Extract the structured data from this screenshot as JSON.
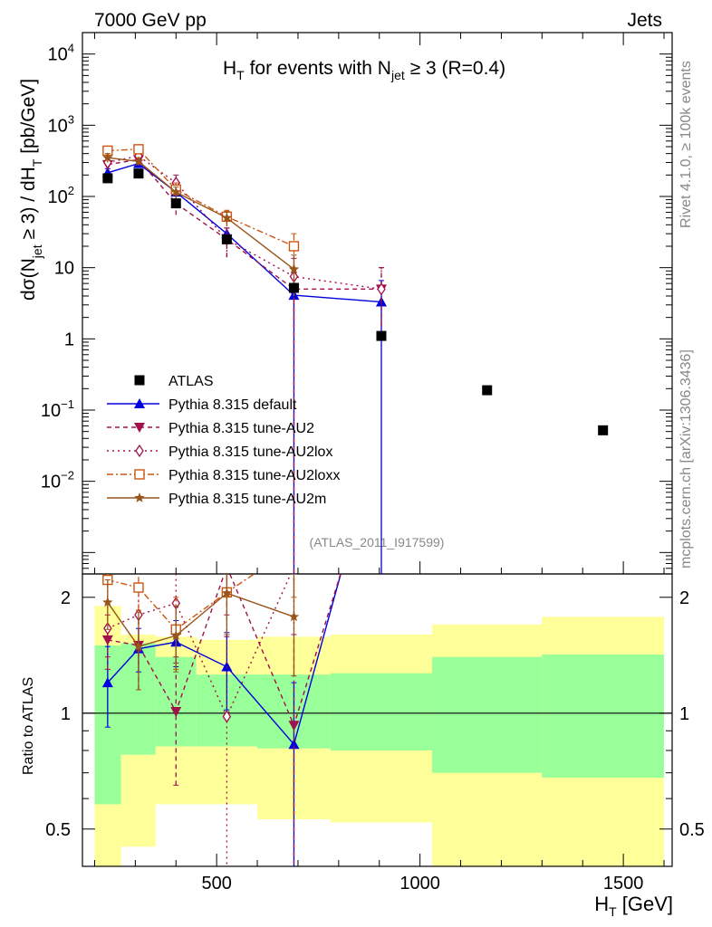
{
  "chart_data": {
    "type": "scatter",
    "header_left": "7000 GeV pp",
    "header_right": "Jets",
    "title": {
      "base": "H",
      "base_sub": "T",
      "mid": " for events with N",
      "mid_sub": "jet",
      "tail": " ≥ 3 (R=0.4)"
    },
    "ylabel": {
      "p1": "dσ(N",
      "sub1": "jet",
      "p2": " ≥ 3) / dH",
      "sub2": "T",
      "p3": " [pb/GeV]"
    },
    "xlabel": {
      "base": "H",
      "sub": "T",
      "tail": " [GeV]"
    },
    "ratio_ylabel": "Ratio to ATLAS",
    "right_label_top": "Rivet 4.1.0, ≥ 100k events",
    "right_label_bottom": "mcplots.cern.ch [arXiv:1306.3436]",
    "analysis_id": "(ATLAS_2011_I917599)",
    "xlim": [
      170,
      1620
    ],
    "ylim_main": [
      0.0005,
      20000
    ],
    "ylim_ratio": [
      0.4,
      2.3
    ],
    "x_ticks": [
      {
        "value": 500,
        "label": "500"
      },
      {
        "value": 1000,
        "label": "1000"
      },
      {
        "value": 1500,
        "label": "1500"
      }
    ],
    "y_ticks_main": [
      {
        "value": 10000,
        "base": "10",
        "exp": "4"
      },
      {
        "value": 1000,
        "base": "10",
        "exp": "3"
      },
      {
        "value": 100,
        "base": "10",
        "exp": "2"
      },
      {
        "value": 10,
        "base": "10",
        "exp": ""
      },
      {
        "value": 1,
        "base": "1",
        "exp": ""
      },
      {
        "value": 0.1,
        "base": "10",
        "exp": "−1"
      },
      {
        "value": 0.01,
        "base": "10",
        "exp": "−2"
      }
    ],
    "y_ticks_ratio": [
      {
        "value": 2,
        "label": "2"
      },
      {
        "value": 1,
        "label": "1"
      },
      {
        "value": 0.5,
        "label": "0.5"
      }
    ],
    "bins": [
      {
        "lo": 200,
        "hi": 265,
        "green": [
          0.58,
          1.5
        ],
        "yellow": [
          0.35,
          1.9
        ]
      },
      {
        "lo": 265,
        "hi": 350,
        "green": [
          0.78,
          1.52
        ],
        "yellow": [
          0.45,
          1.6
        ]
      },
      {
        "lo": 350,
        "hi": 450,
        "green": [
          0.82,
          1.4
        ],
        "yellow": [
          0.58,
          1.58
        ]
      },
      {
        "lo": 450,
        "hi": 600,
        "green": [
          0.82,
          1.26
        ],
        "yellow": [
          0.58,
          1.55
        ]
      },
      {
        "lo": 600,
        "hi": 780,
        "green": [
          0.81,
          1.26
        ],
        "yellow": [
          0.53,
          1.58
        ]
      },
      {
        "lo": 780,
        "hi": 1030,
        "green": [
          0.8,
          1.27
        ],
        "yellow": [
          0.52,
          1.6
        ]
      },
      {
        "lo": 1030,
        "hi": 1300,
        "green": [
          0.7,
          1.4
        ],
        "yellow": [
          0.34,
          1.7
        ]
      },
      {
        "lo": 1300,
        "hi": 1600,
        "green": [
          0.68,
          1.42
        ],
        "yellow": [
          0.34,
          1.78
        ]
      }
    ],
    "atlas": {
      "name": "ATLAS",
      "x": [
        232,
        308,
        400,
        525,
        690,
        905,
        1165,
        1450
      ],
      "y": [
        180,
        210,
        80,
        25,
        5.2,
        1.1,
        0.19,
        0.052
      ]
    },
    "series": [
      {
        "name": "Pythia 8.315 default",
        "color": "#0000dd",
        "dash": "",
        "marker": "triangle-up",
        "x": [
          232,
          308,
          400,
          525,
          690,
          905
        ],
        "y": [
          215,
          290,
          115,
          30,
          4.1,
          3.3
        ],
        "err": [
          [
            185,
            245
          ],
          [
            255,
            325
          ],
          [
            95,
            135
          ],
          [
            24,
            36
          ],
          [
            0.0004,
            8.5
          ],
          [
            0.0004,
            6.6
          ]
        ],
        "ratio_x": [
          232,
          308,
          400,
          525,
          690
        ],
        "ratio_y": [
          1.2,
          1.47,
          1.53,
          1.32,
          0.83
        ],
        "ratio_err": [
          [
            0.92,
            1.49
          ],
          [
            1.28,
            1.66
          ],
          [
            1.32,
            1.74
          ],
          [
            1.02,
            1.62
          ],
          [
            0.35,
            1.2
          ]
        ],
        "ratio_tail": 2.4
      },
      {
        "name": "Pythia 8.315 tune-AU2",
        "color": "#a0104c",
        "dash": "5,4",
        "marker": "triangle-down",
        "x": [
          232,
          308,
          400,
          525,
          690,
          905
        ],
        "y": [
          280,
          330,
          80,
          25,
          5.0,
          5.0
        ],
        "err": [
          [
            235,
            325
          ],
          [
            285,
            375
          ],
          [
            55,
            105
          ],
          [
            14,
            36
          ],
          [
            0.0004,
            9.5
          ],
          [
            1.5,
            10
          ]
        ],
        "ratio_x": [
          232,
          308,
          400,
          525,
          690
        ],
        "ratio_y": [
          1.55,
          1.5,
          1.01,
          2.4,
          0.93
        ],
        "ratio_err": [
          [
            1.3,
            1.8
          ],
          [
            1.15,
            1.85
          ],
          [
            0.65,
            1.35
          ],
          [
            1.8,
            3.0
          ],
          [
            0.35,
            1.6
          ]
        ],
        "ratio_tail": 2.4
      },
      {
        "name": "Pythia 8.315 tune-AU2lox",
        "color": "#a0104c",
        "dash": "2,4",
        "marker": "diamond",
        "x": [
          232,
          308,
          400,
          525,
          690,
          905
        ],
        "y": [
          300,
          370,
          155,
          25,
          7.5,
          5.0
        ],
        "err": [
          [
            255,
            345
          ],
          [
            320,
            420
          ],
          [
            110,
            200
          ],
          [
            14,
            36
          ],
          [
            1.5,
            13.5
          ],
          [
            1.5,
            10
          ]
        ],
        "ratio_x": [
          232,
          308,
          400,
          525,
          690
        ],
        "ratio_y": [
          1.66,
          1.8,
          1.93,
          0.98,
          2.4
        ],
        "ratio_err": [
          [
            1.4,
            1.92
          ],
          [
            1.45,
            2.15
          ],
          [
            1.4,
            2.45
          ],
          [
            0.38,
            1.58
          ],
          [
            1.6,
            3.2
          ]
        ],
        "ratio_tail": 2.6
      },
      {
        "name": "Pythia 8.315 tune-AU2loxx",
        "color": "#cc5511",
        "dash": "7,3,2,3",
        "marker": "square-open",
        "x": [
          232,
          308,
          400,
          525,
          690
        ],
        "y": [
          440,
          460,
          125,
          52,
          20
        ],
        "err": [
          [
            375,
            505
          ],
          [
            400,
            520
          ],
          [
            95,
            155
          ],
          [
            40,
            64
          ],
          [
            10,
            30
          ]
        ],
        "ratio_x": [
          232,
          308,
          400,
          525,
          690
        ],
        "ratio_y": [
          2.22,
          2.12,
          1.65,
          2.06,
          2.7
        ],
        "ratio_err": [
          [
            1.95,
            2.5
          ],
          [
            1.85,
            2.4
          ],
          [
            1.3,
            2.0
          ],
          [
            1.6,
            2.5
          ],
          [
            2.0,
            3.4
          ]
        ],
        "ratio_tail": null
      },
      {
        "name": "Pythia 8.315 tune-AU2m",
        "color": "#99541a",
        "dash": "",
        "marker": "star",
        "x": [
          232,
          308,
          400,
          525,
          690
        ],
        "y": [
          350,
          310,
          115,
          50,
          9.5
        ],
        "err": [
          [
            300,
            400
          ],
          [
            270,
            350
          ],
          [
            95,
            135
          ],
          [
            38,
            62
          ],
          [
            4,
            15
          ]
        ],
        "ratio_x": [
          232,
          308,
          400,
          525,
          690
        ],
        "ratio_y": [
          1.94,
          1.49,
          1.59,
          2.05,
          1.78
        ],
        "ratio_err": [
          [
            1.65,
            2.22
          ],
          [
            1.15,
            1.83
          ],
          [
            1.28,
            1.9
          ],
          [
            1.6,
            2.5
          ],
          [
            1.25,
            2.3
          ]
        ],
        "ratio_tail": null
      }
    ],
    "legend_position": "lower-left"
  }
}
